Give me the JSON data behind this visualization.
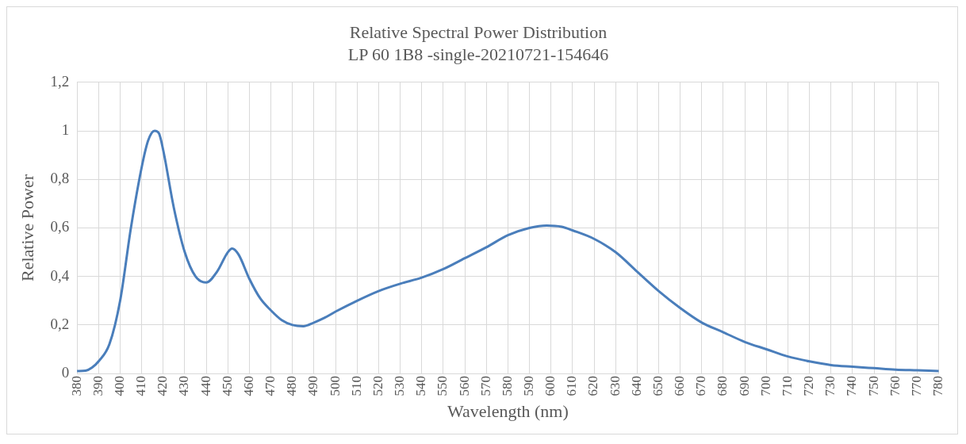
{
  "chart_data": {
    "type": "line",
    "title": "Relative Spectral Power Distribution",
    "subtitle": "LP 60 1B8 -single-20210721-154646",
    "xlabel": "Wavelength (nm)",
    "ylabel": "Relative Power",
    "xlim": [
      380,
      780
    ],
    "xticks": [
      380,
      390,
      400,
      410,
      420,
      430,
      440,
      450,
      460,
      470,
      480,
      490,
      500,
      510,
      520,
      530,
      540,
      550,
      560,
      570,
      580,
      590,
      600,
      610,
      620,
      630,
      640,
      650,
      660,
      670,
      680,
      690,
      700,
      710,
      720,
      730,
      740,
      750,
      760,
      770,
      780
    ],
    "ylim": [
      0,
      1.2
    ],
    "yticks": [
      {
        "value": 0,
        "label": "0"
      },
      {
        "value": 0.2,
        "label": "0,2"
      },
      {
        "value": 0.4,
        "label": "0,4"
      },
      {
        "value": 0.6,
        "label": "0,6"
      },
      {
        "value": 0.8,
        "label": "0,8"
      },
      {
        "value": 1,
        "label": "1"
      },
      {
        "value": 1.2,
        "label": "1,2"
      }
    ],
    "grid": true,
    "legend": false,
    "marker": "none",
    "line_style": "solid",
    "series": [
      {
        "color": "#4a7ebb",
        "x": [
          380,
          384,
          387,
          390,
          395,
          400,
          405,
          410,
          413,
          416,
          418,
          420,
          425,
          430,
          435,
          440,
          445,
          450,
          452,
          455,
          460,
          465,
          470,
          475,
          480,
          485,
          490,
          495,
          500,
          510,
          520,
          530,
          540,
          550,
          560,
          570,
          580,
          590,
          598,
          605,
          610,
          620,
          630,
          640,
          650,
          660,
          670,
          680,
          690,
          700,
          710,
          720,
          730,
          740,
          750,
          760,
          770,
          780
        ],
        "values": [
          0.01,
          0.012,
          0.025,
          0.05,
          0.12,
          0.3,
          0.6,
          0.85,
          0.96,
          1.0,
          0.99,
          0.92,
          0.68,
          0.5,
          0.4,
          0.375,
          0.42,
          0.5,
          0.515,
          0.49,
          0.39,
          0.31,
          0.26,
          0.22,
          0.2,
          0.195,
          0.21,
          0.23,
          0.255,
          0.3,
          0.34,
          0.37,
          0.395,
          0.43,
          0.475,
          0.52,
          0.57,
          0.6,
          0.61,
          0.605,
          0.59,
          0.555,
          0.5,
          0.42,
          0.34,
          0.27,
          0.21,
          0.17,
          0.13,
          0.1,
          0.07,
          0.05,
          0.035,
          0.028,
          0.022,
          0.016,
          0.013,
          0.01
        ]
      }
    ]
  }
}
